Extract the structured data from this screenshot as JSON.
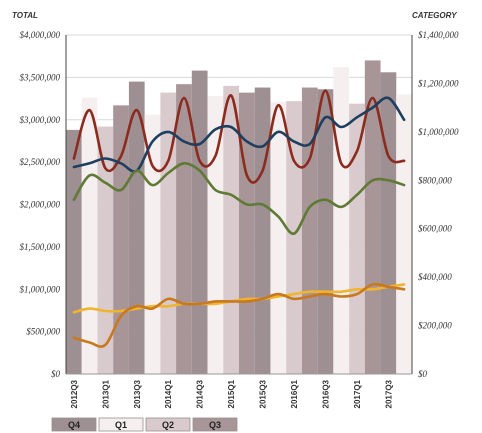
{
  "chart_data": {
    "type": "bar",
    "left_axis_title": "TOTAL",
    "right_axis_title": "CATEGORY",
    "left_ticks": [
      "$0",
      "$500,000",
      "$1,000,000",
      "$1,500,000",
      "$2,000,000",
      "$2,500,000",
      "$3,000,000",
      "$3,500,000",
      "$4,000,000"
    ],
    "right_ticks": [
      "$0",
      "$200,000",
      "$400,000",
      "$600,000",
      "$800,000",
      "$1,000,000",
      "$1,200,000",
      "$1,400,000"
    ],
    "left_ylim": [
      0,
      4000000
    ],
    "right_ylim": [
      0,
      1400000
    ],
    "x_tick_labels": [
      "2012Q3",
      "2013Q1",
      "2013Q3",
      "2014Q1",
      "2014Q3",
      "2015Q1",
      "2015Q3",
      "2016Q1",
      "2016Q3",
      "2017Q1",
      "2017Q3"
    ],
    "quarters": [
      "Q4",
      "Q1",
      "Q2",
      "Q3",
      "Q4",
      "Q1",
      "Q2",
      "Q3",
      "Q4",
      "Q1",
      "Q2",
      "Q3",
      "Q4",
      "Q1",
      "Q2",
      "Q3",
      "Q4",
      "Q1",
      "Q2",
      "Q3",
      "Q4",
      "Q1"
    ],
    "bar_values": [
      2880000,
      3260000,
      2920000,
      3170000,
      3450000,
      3060000,
      3320000,
      3420000,
      3580000,
      3280000,
      3400000,
      3320000,
      3380000,
      3210000,
      3220000,
      3380000,
      3360000,
      3620000,
      3190000,
      3700000,
      3560000,
      3300000
    ],
    "bar_colors": {
      "Q4": "#9e8f92",
      "Q1": "#f6eff0",
      "Q2": "#d9cbcd",
      "Q3": "#a89598"
    },
    "legend": [
      "Q4",
      "Q1",
      "Q2",
      "Q3"
    ],
    "series": [
      {
        "color": "#8b2b1e",
        "axis": "right",
        "values": [
          890000,
          1090000,
          850000,
          900000,
          1090000,
          860000,
          880000,
          1140000,
          880000,
          900000,
          1150000,
          820000,
          840000,
          1110000,
          880000,
          890000,
          1170000,
          870000,
          920000,
          1140000,
          900000,
          880000
        ]
      },
      {
        "color": "#1f3f5f",
        "axis": "right",
        "values": [
          855000,
          870000,
          890000,
          870000,
          840000,
          960000,
          1000000,
          960000,
          950000,
          1010000,
          1020000,
          960000,
          940000,
          1000000,
          960000,
          950000,
          1060000,
          1020000,
          1060000,
          1100000,
          1140000,
          1050000
        ]
      },
      {
        "color": "#5f7a35",
        "axis": "right",
        "values": [
          720000,
          820000,
          790000,
          760000,
          840000,
          780000,
          830000,
          870000,
          840000,
          760000,
          740000,
          700000,
          700000,
          650000,
          580000,
          690000,
          720000,
          690000,
          740000,
          800000,
          800000,
          780000
        ]
      },
      {
        "color": "#f0b52e",
        "axis": "right",
        "values": [
          255000,
          270000,
          260000,
          260000,
          270000,
          280000,
          280000,
          290000,
          290000,
          290000,
          300000,
          310000,
          310000,
          320000,
          330000,
          340000,
          340000,
          340000,
          350000,
          350000,
          360000,
          370000
        ]
      },
      {
        "color": "#c9791d",
        "axis": "right",
        "values": [
          150000,
          130000,
          120000,
          240000,
          280000,
          270000,
          310000,
          290000,
          290000,
          300000,
          300000,
          300000,
          310000,
          330000,
          310000,
          320000,
          330000,
          320000,
          330000,
          370000,
          360000,
          350000
        ]
      }
    ]
  }
}
